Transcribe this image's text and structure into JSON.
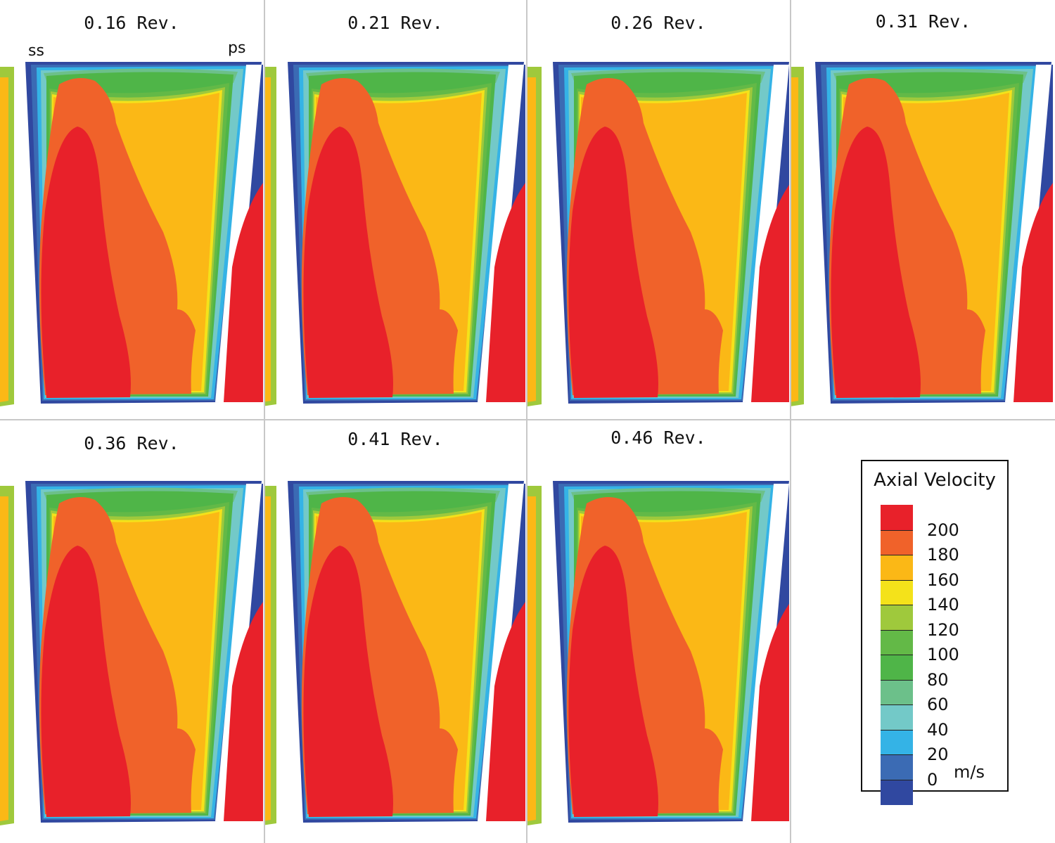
{
  "panels": [
    {
      "label": "0.16 Rev."
    },
    {
      "label": "0.21 Rev."
    },
    {
      "label": "0.26 Rev."
    },
    {
      "label": "0.31 Rev."
    },
    {
      "label": "0.36 Rev."
    },
    {
      "label": "0.41 Rev."
    },
    {
      "label": "0.46 Rev."
    }
  ],
  "side_labels": {
    "suction": "ss",
    "pressure": "ps"
  },
  "legend": {
    "title": "Axial Velocity",
    "unit": "m/s",
    "ticks": [
      "200",
      "180",
      "160",
      "140",
      "120",
      "100",
      "80",
      "60",
      "40",
      "20",
      "0"
    ],
    "colors": [
      "#e8212a",
      "#f0622a",
      "#fbb816",
      "#f4e21a",
      "#9fc93c",
      "#63b947",
      "#4fb548",
      "#6cc08a",
      "#73c9c8",
      "#34b3e6",
      "#3b6bb4",
      "#3048a0"
    ]
  }
}
